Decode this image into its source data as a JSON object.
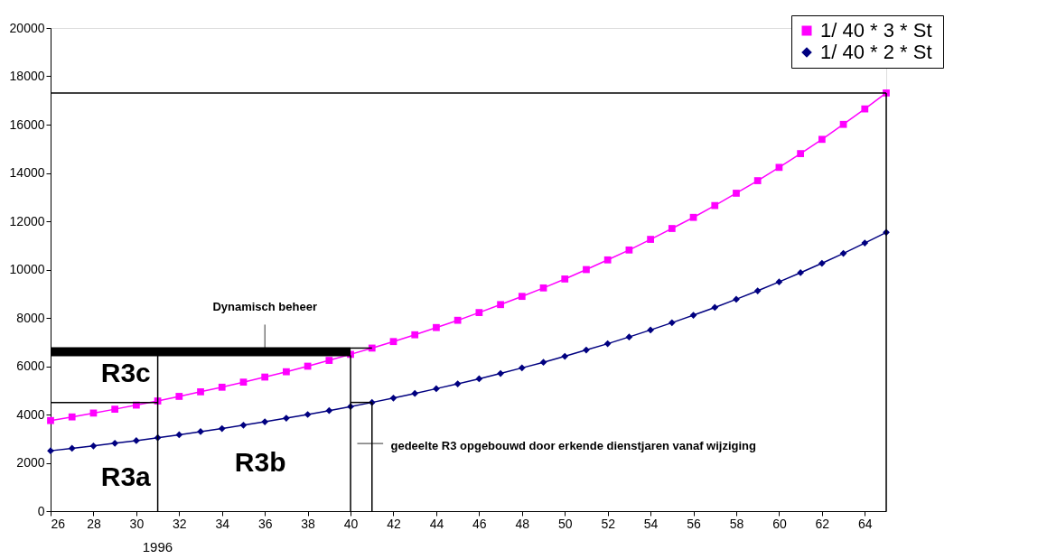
{
  "chart_data": {
    "type": "line",
    "x": [
      26,
      27,
      28,
      29,
      30,
      31,
      32,
      33,
      34,
      35,
      36,
      37,
      38,
      39,
      40,
      41,
      42,
      43,
      44,
      45,
      46,
      47,
      48,
      49,
      50,
      51,
      52,
      53,
      54,
      55,
      56,
      57,
      58,
      59,
      60,
      61,
      62,
      63,
      64,
      65
    ],
    "series": [
      {
        "name": "1/ 40 * 3 *  St",
        "color": "#ff00ff",
        "marker": "square",
        "values": [
          3750,
          3900,
          4060,
          4220,
          4390,
          4560,
          4750,
          4940,
          5130,
          5340,
          5550,
          5770,
          6000,
          6240,
          6490,
          6750,
          7020,
          7300,
          7600,
          7900,
          8220,
          8550,
          8890,
          9240,
          9610,
          10000,
          10400,
          10810,
          11250,
          11700,
          12160,
          12650,
          13160,
          13680,
          14230,
          14800,
          15390,
          16010,
          16650,
          17310
        ]
      },
      {
        "name": "1/ 40 * 2 *  St",
        "color": "#000080",
        "marker": "diamond",
        "values": [
          2500,
          2600,
          2700,
          2810,
          2920,
          3040,
          3160,
          3290,
          3420,
          3560,
          3700,
          3850,
          4000,
          4160,
          4330,
          4500,
          4680,
          4870,
          5070,
          5270,
          5480,
          5700,
          5930,
          6160,
          6410,
          6670,
          6930,
          7210,
          7500,
          7800,
          8110,
          8430,
          8770,
          9120,
          9490,
          9870,
          10260,
          10670,
          11100,
          11540
        ]
      },
      {
        "type": "line",
        "color": "#000000",
        "marker": "none",
        "x": [
          26,
          65
        ],
        "values": [
          17310,
          17310
        ]
      },
      {
        "type": "line",
        "color": "#000000",
        "marker": "none",
        "x": [
          65,
          65
        ],
        "values": [
          17310,
          0
        ]
      },
      {
        "type": "line",
        "color": "#000000",
        "marker": "none",
        "x": [
          26,
          31
        ],
        "values": [
          4500,
          4500
        ]
      },
      {
        "type": "line",
        "color": "#000000",
        "marker": "none",
        "x": [
          31,
          31
        ],
        "values": [
          0,
          6450
        ]
      },
      {
        "type": "line",
        "color": "#000000",
        "marker": "none",
        "x": [
          40,
          40
        ],
        "values": [
          0,
          6450
        ]
      },
      {
        "type": "line",
        "color": "#000000",
        "marker": "none",
        "x": [
          40,
          41
        ],
        "values": [
          4500,
          4500
        ]
      },
      {
        "type": "line",
        "color": "#000000",
        "marker": "none",
        "x": [
          41,
          41
        ],
        "values": [
          4500,
          0
        ]
      },
      {
        "type": "line",
        "color": "#000000",
        "marker": "none",
        "x": [
          40,
          41
        ],
        "values": [
          6750,
          6750
        ]
      },
      {
        "type": "line",
        "color": "#000000",
        "marker": "none",
        "x": [
          26,
          40
        ],
        "values": [
          6600,
          6600
        ],
        "lower": [
          6450,
          6450
        ],
        "upper": [
          6750,
          6750
        ]
      }
    ],
    "xlim": [
      26,
      65
    ],
    "xticks": [
      26,
      28,
      30,
      32,
      34,
      36,
      38,
      40,
      42,
      44,
      46,
      48,
      50,
      52,
      54,
      56,
      58,
      60,
      62,
      64
    ],
    "ylim": [
      0,
      20000
    ],
    "yticks": [
      0,
      2000,
      4000,
      6000,
      8000,
      10000,
      12000,
      14000,
      16000,
      18000,
      20000
    ],
    "legend": "top right",
    "annotations": [
      "R3c",
      "R3a",
      "R3b",
      {
        "text": "Dynamisch beheer",
        "x": 36,
        "y": 6750
      },
      "gedeelte R3 opgebouwd door erkende dienstjaren vanaf wijziging",
      "1996"
    ]
  }
}
